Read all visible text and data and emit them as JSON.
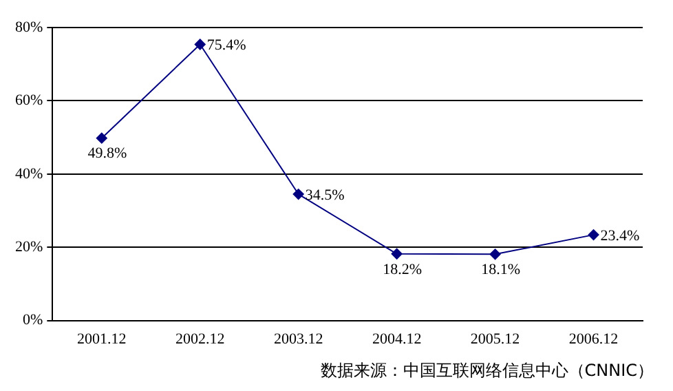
{
  "chart_data": {
    "type": "line",
    "categories": [
      "2001.12",
      "2002.12",
      "2003.12",
      "2004.12",
      "2005.12",
      "2006.12"
    ],
    "series": [
      {
        "color": "#000080",
        "values": [
          49.8,
          75.4,
          34.5,
          18.2,
          18.1,
          23.4
        ],
        "value_labels": [
          "49.8%",
          "75.4%",
          "34.5%",
          "18.2%",
          "18.1%",
          "23.4%"
        ]
      }
    ],
    "ylim": [
      0,
      80
    ],
    "yticks": [
      {
        "value": 0,
        "label": "0%"
      },
      {
        "value": 20,
        "label": "20%"
      },
      {
        "value": 40,
        "label": "40%"
      },
      {
        "value": 60,
        "label": "60%"
      },
      {
        "value": 80,
        "label": "80%"
      }
    ],
    "grid": "y",
    "marker": "diamond",
    "line_style": "solid",
    "legend": false,
    "annotations": [
      "数据来源：中国互联网络信息中心（CNNIC）"
    ]
  }
}
